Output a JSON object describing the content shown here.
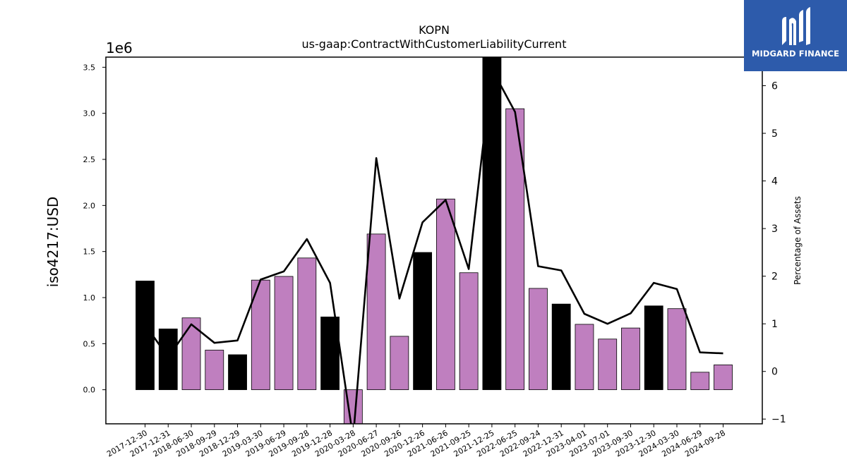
{
  "chart_data": {
    "type": "bar",
    "title": "KOPN",
    "subtitle": "us-gaap:ContractWithCustomerLiabilityCurrent",
    "ylabel": "iso4217:USD",
    "ylabel_right": "Percentage of Assets",
    "y_offset_label": "1e6",
    "ylim": [
      -0.37,
      3.61
    ],
    "ylim_right": [
      -1.1,
      6.6
    ],
    "yticks": [
      "0.0",
      "0.5",
      "1.0",
      "1.5",
      "2.0",
      "2.5",
      "3.0",
      "3.5"
    ],
    "yticks_right": [
      "−1",
      "0",
      "1",
      "2",
      "3",
      "4",
      "5",
      "6"
    ],
    "categories": [
      "2017-12-30",
      "2017-12-31",
      "2018-06-30",
      "2018-09-29",
      "2018-12-29",
      "2019-03-30",
      "2019-06-29",
      "2019-09-28",
      "2019-12-28",
      "2020-03-28",
      "2020-06-27",
      "2020-09-26",
      "2020-12-26",
      "2021-06-26",
      "2021-09-25",
      "2021-12-25",
      "2022-06-25",
      "2022-09-24",
      "2022-12-31",
      "2023-04-01",
      "2023-07-01",
      "2023-09-30",
      "2023-12-30",
      "2024-03-30",
      "2024-06-29",
      "2024-09-28"
    ],
    "series": [
      {
        "values": [
          1.18,
          0.66,
          0.78,
          0.43,
          0.38,
          1.19,
          1.23,
          1.43,
          0.79,
          -0.5,
          1.69,
          0.58,
          1.49,
          2.07,
          1.27,
          3.65,
          3.05,
          1.1,
          0.93,
          0.71,
          0.55,
          0.67,
          0.91,
          0.88,
          0.19,
          0.27
        ],
        "bar_colors": [
          "#000000",
          "#000000",
          "#bf7fbf",
          "#bf7fbf",
          "#000000",
          "#bf7fbf",
          "#bf7fbf",
          "#bf7fbf",
          "#000000",
          "#bf7fbf",
          "#bf7fbf",
          "#bf7fbf",
          "#000000",
          "#bf7fbf",
          "#bf7fbf",
          "#000000",
          "#bf7fbf",
          "#bf7fbf",
          "#000000",
          "#bf7fbf",
          "#bf7fbf",
          "#bf7fbf",
          "#000000",
          "#bf7fbf",
          "#bf7fbf",
          "#bf7fbf"
        ]
      },
      {
        "axis": "right",
        "type": "line",
        "color": "#000000",
        "values": [
          0.98,
          0.3,
          0.99,
          0.6,
          0.65,
          1.93,
          2.1,
          2.78,
          1.86,
          -1.4,
          4.48,
          1.53,
          3.13,
          3.6,
          2.15,
          6.35,
          5.45,
          2.21,
          2.12,
          1.21,
          1.0,
          1.22,
          1.86,
          1.73,
          0.4,
          0.38
        ]
      }
    ],
    "grid": false,
    "legend": "none"
  },
  "logo": {
    "brand": "MIDGARD FINANCE",
    "bg_color": "#2d5bab"
  }
}
